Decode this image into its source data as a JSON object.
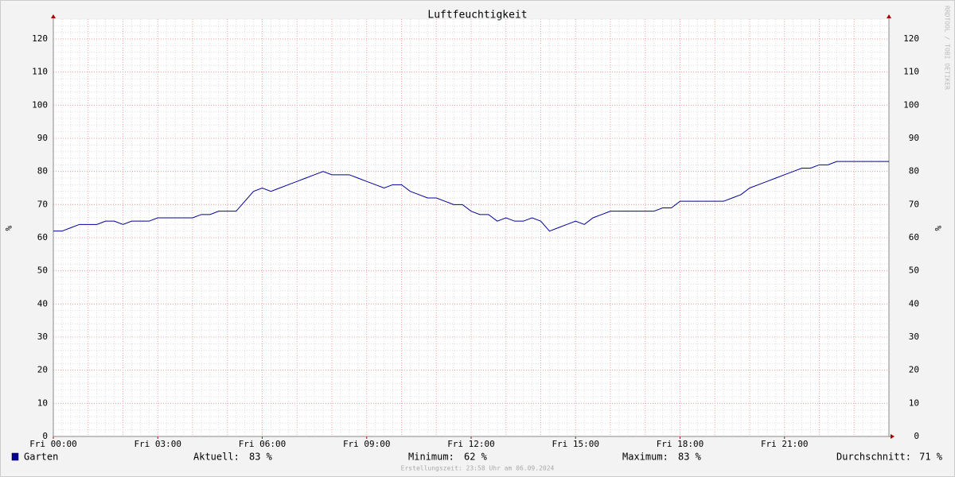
{
  "chart_data": {
    "type": "line",
    "title": "Luftfeuchtigkeit",
    "y_label": "%",
    "watermark": "RRDTOOL / TOBI OETIKER",
    "xlim": [
      0,
      24
    ],
    "xticks": [
      {
        "value": 0,
        "label": "Fri 00:00"
      },
      {
        "value": 3,
        "label": "Fri 03:00"
      },
      {
        "value": 6,
        "label": "Fri 06:00"
      },
      {
        "value": 9,
        "label": "Fri 09:00"
      },
      {
        "value": 12,
        "label": "Fri 12:00"
      },
      {
        "value": 15,
        "label": "Fri 15:00"
      },
      {
        "value": 18,
        "label": "Fri 18:00"
      },
      {
        "value": 21,
        "label": "Fri 21:00"
      }
    ],
    "ylim": [
      0,
      126
    ],
    "yticks": [
      0,
      10,
      20,
      30,
      40,
      50,
      60,
      70,
      80,
      90,
      100,
      110,
      120
    ],
    "grid": true,
    "x": [
      0,
      0.25,
      0.5,
      0.75,
      1,
      1.25,
      1.5,
      1.75,
      2,
      2.25,
      2.5,
      2.75,
      3,
      3.25,
      3.5,
      3.75,
      4,
      4.25,
      4.5,
      4.75,
      5,
      5.25,
      5.5,
      5.75,
      6,
      6.25,
      6.5,
      6.75,
      7,
      7.25,
      7.5,
      7.75,
      8,
      8.25,
      8.5,
      8.75,
      9,
      9.25,
      9.5,
      9.75,
      10,
      10.25,
      10.5,
      10.75,
      11,
      11.25,
      11.5,
      11.75,
      12,
      12.25,
      12.5,
      12.75,
      13,
      13.25,
      13.5,
      13.75,
      14,
      14.25,
      14.5,
      14.75,
      15,
      15.25,
      15.5,
      15.75,
      16,
      16.25,
      16.5,
      16.75,
      17,
      17.25,
      17.5,
      17.75,
      18,
      18.25,
      18.5,
      18.75,
      19,
      19.25,
      19.5,
      19.75,
      20,
      20.25,
      20.5,
      20.75,
      21,
      21.25,
      21.5,
      21.75,
      22,
      22.25,
      22.5,
      22.75,
      23,
      23.25,
      23.5,
      23.75,
      24
    ],
    "series": [
      {
        "name": "Garten",
        "color": "#000099",
        "values": [
          62,
          62,
          63,
          64,
          64,
          64,
          65,
          65,
          64,
          65,
          65,
          65,
          66,
          66,
          66,
          66,
          66,
          67,
          67,
          68,
          68,
          68,
          71,
          74,
          75,
          74,
          75,
          76,
          77,
          78,
          79,
          80,
          79,
          79,
          79,
          78,
          77,
          76,
          75,
          76,
          76,
          74,
          73,
          72,
          72,
          71,
          70,
          70,
          68,
          67,
          67,
          65,
          66,
          65,
          65,
          66,
          65,
          62,
          63,
          64,
          65,
          64,
          66,
          67,
          68,
          68,
          68,
          68,
          68,
          68,
          69,
          69,
          71,
          71,
          71,
          71,
          71,
          71,
          72,
          73,
          75,
          76,
          77,
          78,
          79,
          80,
          81,
          81,
          82,
          82,
          83,
          83,
          83,
          83,
          83,
          83,
          83
        ]
      }
    ],
    "stats": [
      {
        "label": "Aktuell:",
        "text": "83 %"
      },
      {
        "label": "Minimum:",
        "text": "62 %"
      },
      {
        "label": "Maximum:",
        "text": "83 %"
      },
      {
        "label": "Durchschnitt:",
        "text": "71 %"
      }
    ],
    "footer": "Erstellungszeit: 23:58 Uhr am 06.09.2024"
  }
}
